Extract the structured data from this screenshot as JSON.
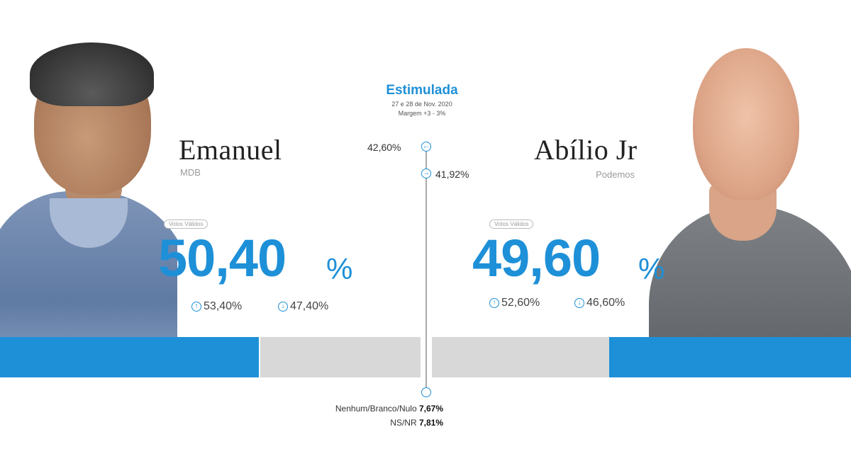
{
  "header": {
    "title": "Estimulada",
    "date": "27 e 28 de Nov. 2020",
    "margin": "Margem +3 - 3%"
  },
  "candidates": [
    {
      "name": "Emanuel",
      "party": "MDB",
      "votes_label": "Votos Válidos",
      "percent": "50,40",
      "percent_sign": "%",
      "upper": "53,40%",
      "lower": "47,40%"
    },
    {
      "name": "Abílio Jr",
      "party": "Podemos",
      "votes_label": "Votos Válidos",
      "percent": "49,60",
      "percent_sign": "%",
      "upper": "52,60%",
      "lower": "46,60%"
    }
  ],
  "center": {
    "left_value": "42,60%",
    "right_value": "41,92%",
    "bottom": [
      {
        "label": "Nenhum/Branco/Nulo",
        "value": "7,67%"
      },
      {
        "label": "NS/NR",
        "value": "7,81%"
      }
    ]
  },
  "colors": {
    "accent": "#1e90d8",
    "bar_gray": "#d8d8d8"
  }
}
